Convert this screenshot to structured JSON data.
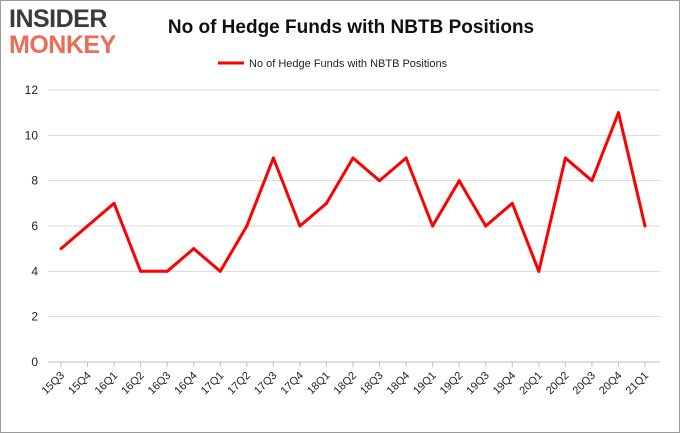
{
  "logo": {
    "line1": "INSIDER",
    "line2": "MONKEY"
  },
  "chart_data": {
    "type": "line",
    "title": "No of Hedge Funds with NBTB Positions",
    "xlabel": "",
    "ylabel": "",
    "categories": [
      "15Q3",
      "15Q4",
      "16Q1",
      "16Q2",
      "16Q3",
      "16Q4",
      "17Q1",
      "17Q2",
      "17Q3",
      "17Q4",
      "18Q1",
      "18Q2",
      "18Q3",
      "18Q4",
      "19Q1",
      "19Q2",
      "19Q3",
      "19Q4",
      "20Q1",
      "20Q2",
      "20Q3",
      "20Q4",
      "21Q1"
    ],
    "series": [
      {
        "name": "No of Hedge Funds with NBTB Positions",
        "color": "#ff0000",
        "values": [
          5,
          6,
          7,
          4,
          4,
          5,
          4,
          6,
          9,
          6,
          7,
          9,
          8,
          9,
          6,
          8,
          6,
          7,
          4,
          9,
          8,
          11,
          6
        ]
      }
    ],
    "ylim": [
      0,
      12
    ],
    "yticks": [
      0,
      2,
      4,
      6,
      8,
      10,
      12
    ],
    "grid": true,
    "legend": "top-center"
  }
}
